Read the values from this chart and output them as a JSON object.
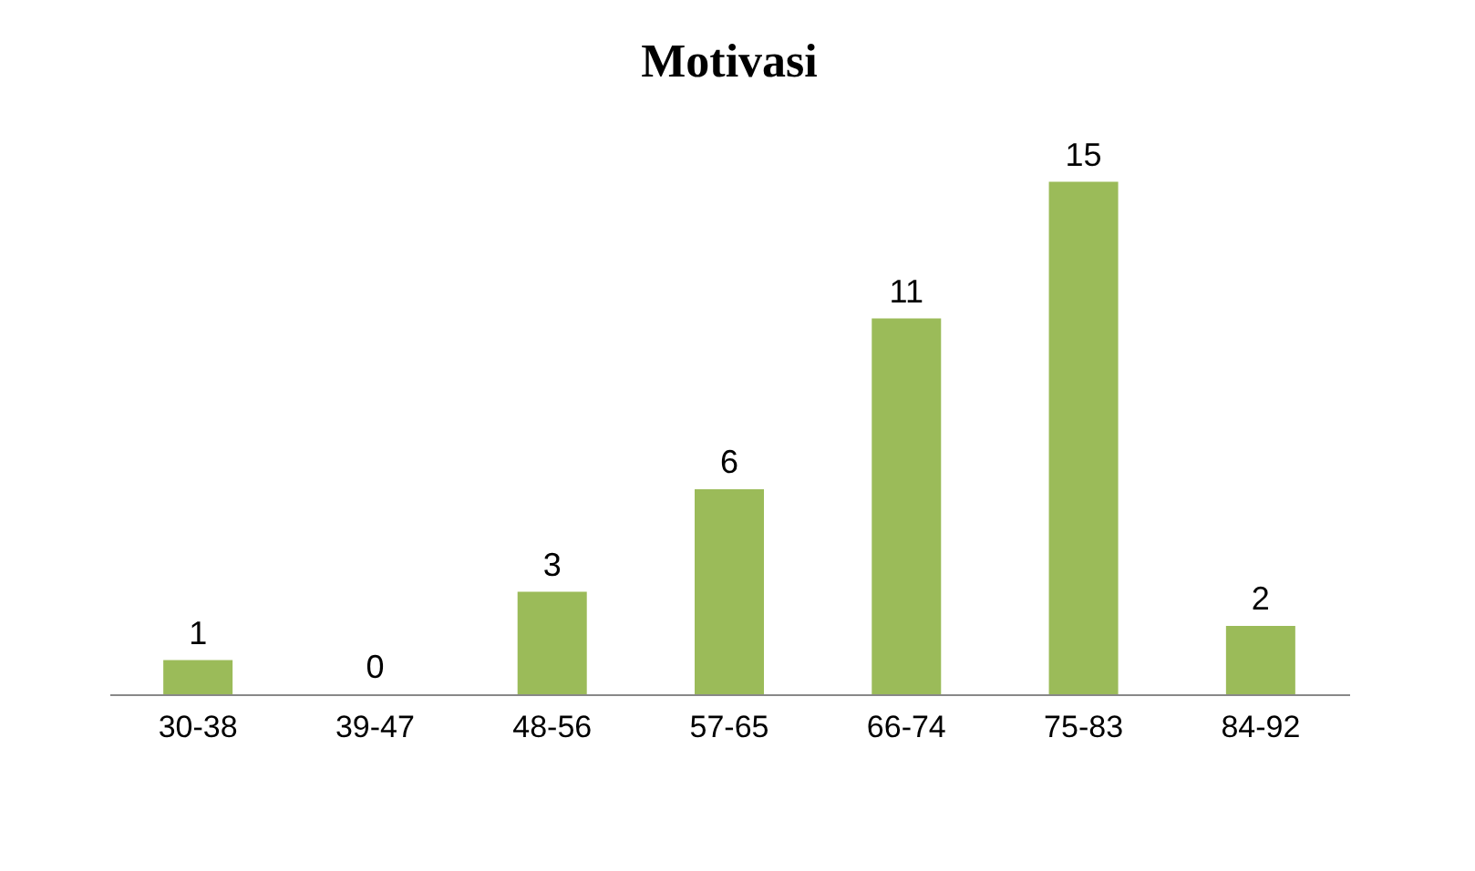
{
  "chart_data": {
    "type": "bar",
    "title": "Motivasi",
    "categories": [
      "30-38",
      "39-47",
      "48-56",
      "57-65",
      "66-74",
      "75-83",
      "84-92"
    ],
    "values": [
      1,
      0,
      3,
      6,
      11,
      15,
      2
    ],
    "color": "#9bbb59",
    "data_labels": true,
    "grid": false
  }
}
